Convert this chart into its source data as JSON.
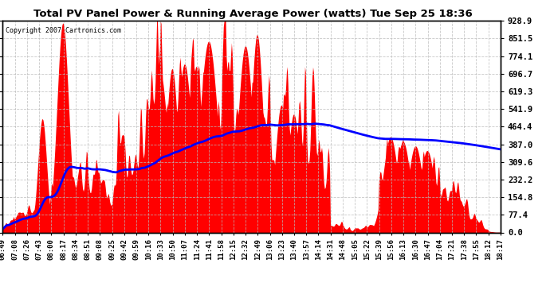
{
  "title": "Total PV Panel Power & Running Average Power (watts) Tue Sep 25 18:36",
  "copyright": "Copyright 2007 Cartronics.com",
  "background_color": "#ffffff",
  "plot_bg_color": "#ffffff",
  "y_ticks": [
    0.0,
    77.4,
    154.8,
    232.2,
    309.6,
    387.0,
    464.4,
    541.9,
    619.3,
    696.7,
    774.1,
    851.5,
    928.9
  ],
  "y_max": 928.9,
  "y_min": 0.0,
  "fill_color": "#ff0000",
  "fill_alpha": 1.0,
  "line_color": "#0000ff",
  "line_width": 2.0,
  "grid_color": "#bbbbbb",
  "grid_style": "--",
  "x_labels": [
    "06:49",
    "07:08",
    "07:26",
    "07:43",
    "08:00",
    "08:17",
    "08:34",
    "08:51",
    "09:08",
    "09:25",
    "09:42",
    "09:59",
    "10:16",
    "10:33",
    "10:50",
    "11:07",
    "11:24",
    "11:41",
    "11:58",
    "12:15",
    "12:32",
    "12:49",
    "13:06",
    "13:23",
    "13:40",
    "13:57",
    "14:14",
    "14:31",
    "14:48",
    "15:05",
    "15:22",
    "15:39",
    "15:56",
    "16:13",
    "16:30",
    "16:47",
    "17:04",
    "17:21",
    "17:38",
    "17:55",
    "18:12",
    "18:17"
  ]
}
